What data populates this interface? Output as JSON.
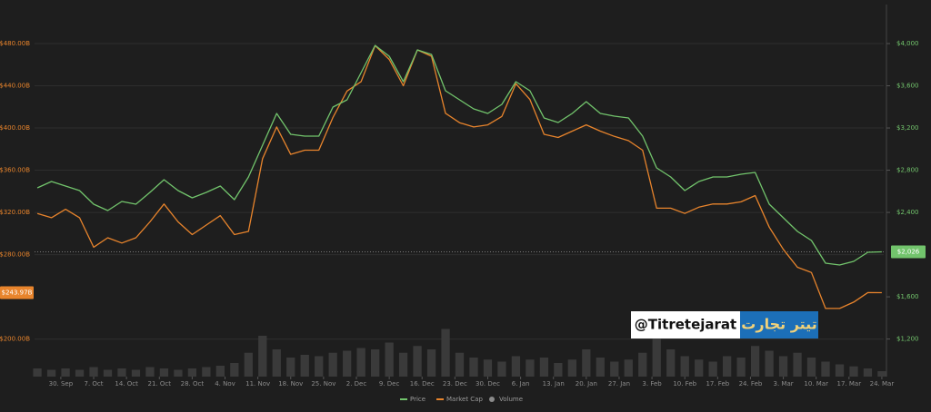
{
  "chart_data": {
    "type": "line",
    "x": [
      -5,
      -2,
      1,
      4,
      7,
      10,
      13,
      16,
      19,
      22,
      25,
      28,
      31,
      34,
      37,
      40,
      43,
      46,
      49,
      52,
      55,
      58,
      61,
      64,
      67,
      70,
      73,
      76,
      79,
      82,
      85,
      88,
      91,
      94,
      97,
      100,
      103,
      106,
      109,
      112,
      115,
      118,
      121,
      124,
      127,
      130,
      133,
      136,
      139,
      142,
      145,
      148,
      151,
      154,
      157,
      160,
      163,
      166,
      169,
      172,
      175
    ],
    "xlim": [
      -5.6,
      175.4
    ],
    "xticks": [
      {
        "value": 0,
        "label": "30. Sep"
      },
      {
        "value": 7,
        "label": "7. Oct"
      },
      {
        "value": 14,
        "label": "14. Oct"
      },
      {
        "value": 21,
        "label": "21. Oct"
      },
      {
        "value": 28,
        "label": "28. Oct"
      },
      {
        "value": 35,
        "label": "4. Nov"
      },
      {
        "value": 42,
        "label": "11. Nov"
      },
      {
        "value": 49,
        "label": "18. Nov"
      },
      {
        "value": 56,
        "label": "25. Nov"
      },
      {
        "value": 63,
        "label": "2. Dec"
      },
      {
        "value": 70,
        "label": "9. Dec"
      },
      {
        "value": 77,
        "label": "16. Dec"
      },
      {
        "value": 84,
        "label": "23. Dec"
      },
      {
        "value": 91,
        "label": "30. Dec"
      },
      {
        "value": 98,
        "label": "6. Jan"
      },
      {
        "value": 105,
        "label": "13. Jan"
      },
      {
        "value": 112,
        "label": "20. Jan"
      },
      {
        "value": 119,
        "label": "27. Jan"
      },
      {
        "value": 126,
        "label": "3. Feb"
      },
      {
        "value": 133,
        "label": "10. Feb"
      },
      {
        "value": 140,
        "label": "17. Feb"
      },
      {
        "value": 147,
        "label": "24. Feb"
      },
      {
        "value": 154,
        "label": "3. Mar"
      },
      {
        "value": 161,
        "label": "10. Mar"
      },
      {
        "value": 168,
        "label": "17. Mar"
      },
      {
        "value": 175,
        "label": "24. Mar"
      }
    ],
    "ylim": [
      164.4,
      517
    ],
    "yticks": [
      {
        "value": 200,
        "label": "$200.00B"
      },
      {
        "value": 280,
        "label": "$280.00B"
      },
      {
        "value": 320,
        "label": "$320.00B"
      },
      {
        "value": 360,
        "label": "$360.00B"
      },
      {
        "value": 400,
        "label": "$400.00B"
      },
      {
        "value": 440,
        "label": "$440.00B"
      },
      {
        "value": 480,
        "label": "$480.00B"
      }
    ],
    "y2lim": [
      843.8,
      4370
    ],
    "y2ticks": [
      {
        "value": 1200,
        "label": "$1,200"
      },
      {
        "value": 1600,
        "label": "$1,600"
      },
      {
        "value": 2400,
        "label": "$2,400"
      },
      {
        "value": 2800,
        "label": "$2,800"
      },
      {
        "value": 3200,
        "label": "$3,200"
      },
      {
        "value": 3600,
        "label": "$3,600"
      },
      {
        "value": 4000,
        "label": "$4,000"
      }
    ],
    "vlim": [
      0,
      100
    ],
    "grid": true,
    "legend": "bottom",
    "series": [
      {
        "name": "Price",
        "color": "#72c46c",
        "axis": "y2",
        "values": [
          2633,
          2693,
          2650,
          2607,
          2478,
          2418,
          2504,
          2478,
          2590,
          2710,
          2607,
          2538,
          2590,
          2650,
          2521,
          2736,
          3037,
          3338,
          3140,
          3123,
          3123,
          3398,
          3467,
          3725,
          3983,
          3880,
          3639,
          3940,
          3897,
          3553,
          3467,
          3381,
          3338,
          3424,
          3639,
          3553,
          3295,
          3252,
          3338,
          3450,
          3338,
          3312,
          3295,
          3123,
          2822,
          2736,
          2607,
          2693,
          2736,
          2736,
          2762,
          2779,
          2478,
          2349,
          2220,
          2134,
          1919,
          1902,
          1936,
          2022,
          2026
        ]
      },
      {
        "name": "Market Cap",
        "color": "#e8842c",
        "axis": "y",
        "values": [
          319,
          315,
          323,
          315,
          287,
          296,
          291,
          296,
          311,
          328,
          311,
          299,
          308,
          317,
          299,
          302,
          371,
          401,
          375,
          379,
          379,
          410,
          435,
          444,
          478,
          465,
          440,
          474,
          468,
          414,
          405,
          401,
          403,
          411,
          442,
          427,
          394,
          391,
          397,
          403,
          397,
          392,
          388,
          379,
          324,
          324,
          319,
          325,
          328,
          328,
          330,
          336,
          306,
          285,
          268,
          263,
          229,
          229,
          235,
          244,
          243.97
        ]
      },
      {
        "name": "Volume",
        "color": "#8a8a8a",
        "axis": "volume",
        "values": [
          12,
          10,
          12,
          10,
          14,
          10,
          12,
          10,
          14,
          12,
          10,
          12,
          14,
          16,
          20,
          35,
          60,
          40,
          28,
          32,
          30,
          35,
          38,
          42,
          40,
          50,
          35,
          45,
          40,
          70,
          35,
          28,
          25,
          22,
          30,
          25,
          28,
          20,
          25,
          40,
          28,
          22,
          25,
          35,
          75,
          40,
          30,
          25,
          22,
          30,
          28,
          45,
          38,
          30,
          35,
          28,
          22,
          18,
          15,
          12,
          8
        ]
      }
    ],
    "badges": [
      {
        "axis": "y",
        "value": 243.97,
        "label": "$243.97B"
      },
      {
        "axis": "y2",
        "value": 2026,
        "label": "$2,026"
      }
    ],
    "watermark": {
      "handle": "@Titretejarat",
      "logo": "تیتر تجارت"
    }
  }
}
